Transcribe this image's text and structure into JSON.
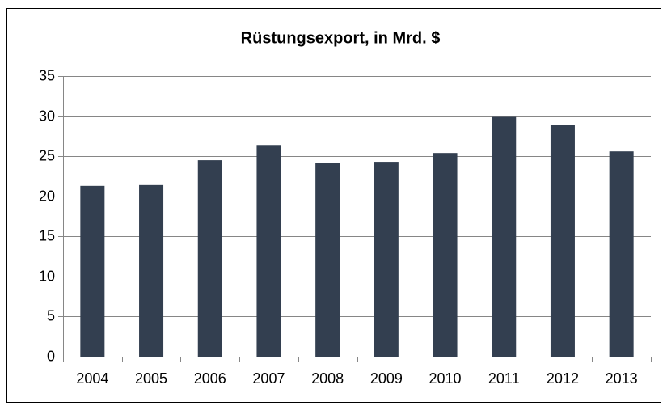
{
  "chart_data": {
    "type": "bar",
    "title": "Rüstungsexport, in Mrd. $",
    "categories": [
      "2004",
      "2005",
      "2006",
      "2007",
      "2008",
      "2009",
      "2010",
      "2011",
      "2012",
      "2013"
    ],
    "values": [
      21.3,
      21.4,
      24.5,
      26.4,
      24.2,
      24.3,
      25.4,
      29.9,
      28.9,
      25.6
    ],
    "color": "#333f50",
    "ylim": [
      0,
      35
    ],
    "yticks": [
      0,
      5,
      10,
      15,
      20,
      25,
      30,
      35
    ],
    "grid": true
  }
}
